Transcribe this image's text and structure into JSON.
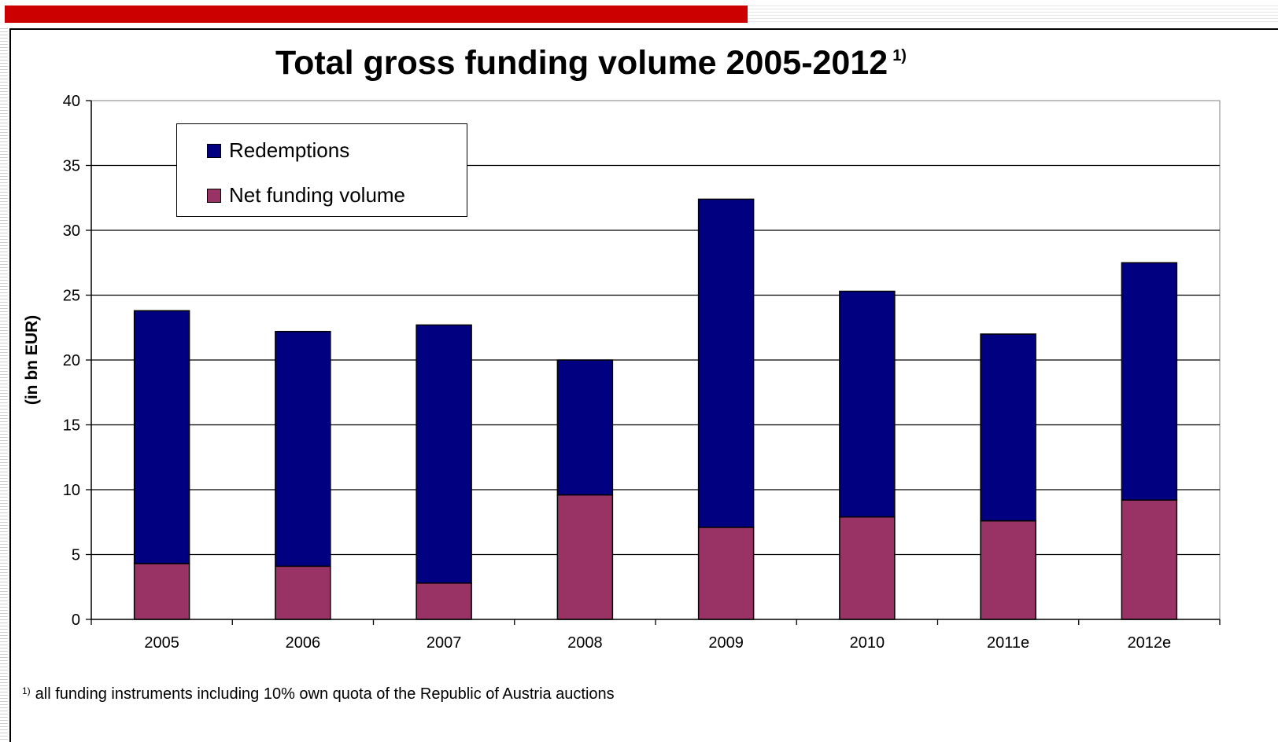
{
  "chart_data": {
    "type": "bar",
    "stacked": true,
    "title": "Total gross funding volume 2005-2012",
    "title_footnote_mark": "1)",
    "xlabel": "",
    "ylabel": "(in bn EUR)",
    "ylim": [
      0,
      40
    ],
    "yticks": [
      0,
      5,
      10,
      15,
      20,
      25,
      30,
      35,
      40
    ],
    "grid": true,
    "legend_position": "top-left",
    "categories": [
      "2005",
      "2006",
      "2007",
      "2008",
      "2009",
      "2010",
      "2011e",
      "2012e"
    ],
    "series": [
      {
        "name": "Net funding volume",
        "color": "#993366",
        "values": [
          4.3,
          4.1,
          2.8,
          9.6,
          7.1,
          7.9,
          7.6,
          9.2
        ]
      },
      {
        "name": "Redemptions",
        "color": "#000080",
        "values": [
          19.5,
          18.1,
          19.9,
          10.4,
          25.3,
          17.4,
          14.4,
          18.3
        ]
      }
    ],
    "legend_order": [
      "Redemptions",
      "Net funding volume"
    ],
    "footnote_mark": "1)",
    "footnote": "all funding instruments including 10% own quota of the Republic of Austria auctions"
  }
}
